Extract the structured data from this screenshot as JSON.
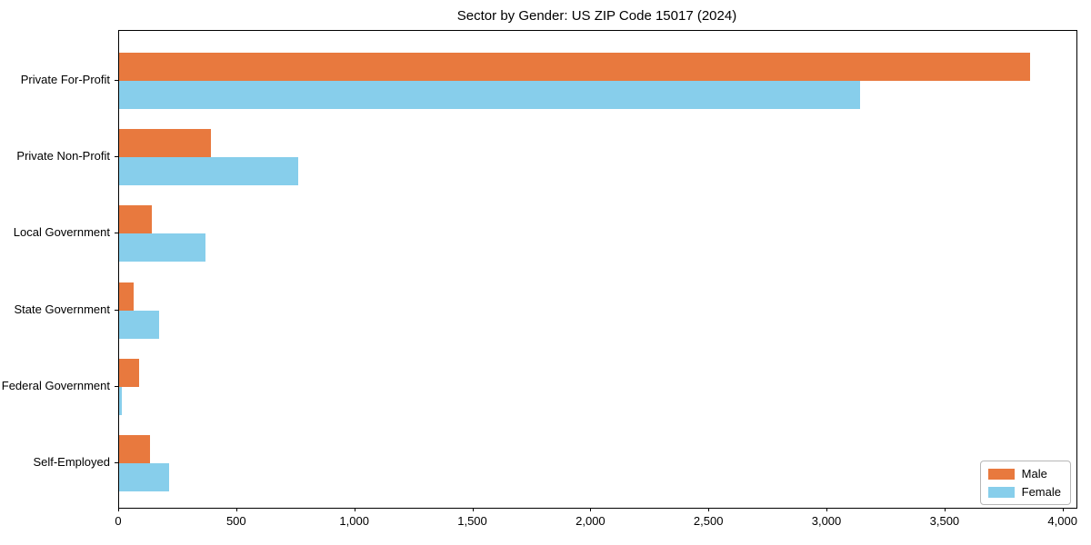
{
  "chart_data": {
    "type": "bar",
    "orientation": "horizontal",
    "title": "Sector by Gender: US ZIP Code 15017 (2024)",
    "categories": [
      "Private For-Profit",
      "Private Non-Profit",
      "Local Government",
      "State Government",
      "Federal Government",
      "Self-Employed"
    ],
    "series": [
      {
        "name": "Male",
        "color": "#e8793e",
        "values": [
          3860,
          390,
          140,
          60,
          85,
          130
        ]
      },
      {
        "name": "Female",
        "color": "#87ceeb",
        "values": [
          3140,
          760,
          365,
          170,
          12,
          210
        ]
      }
    ],
    "xlabel": "",
    "ylabel": "",
    "xlim": [
      0,
      4055
    ],
    "xticks": [
      0,
      500,
      1000,
      1500,
      2000,
      2500,
      3000,
      3500,
      4000
    ],
    "grid": false,
    "legend": {
      "position": "lower right",
      "entries": [
        "Male",
        "Female"
      ]
    }
  }
}
